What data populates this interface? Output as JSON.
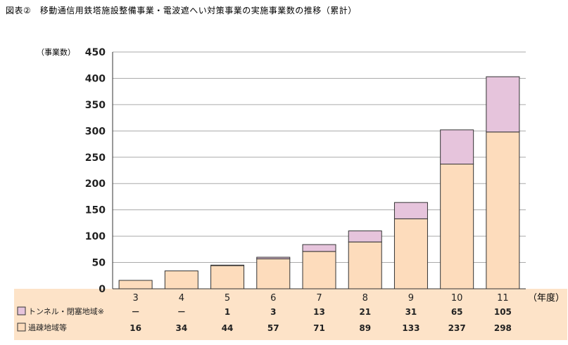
{
  "figure_title": "図表②　移動通信用鉄塔施設整備事業・電波遮へい対策事業の実施事業数の推移（累計）",
  "colors": {
    "base": "#fddcbc",
    "top": "#e6c4dc",
    "table_bg": "#fde3c8",
    "grid": "#aaaaaa",
    "edge": "#333333"
  },
  "chart_data": {
    "type": "bar",
    "stacked": true,
    "title": "図表②　移動通信用鉄塔施設整備事業・電波遮へい対策事業の実施事業数の推移（累計）",
    "ylabel": "（事業数）",
    "xlabel": "（年度）",
    "ylim": [
      0,
      450
    ],
    "yticks": [
      0,
      50,
      100,
      150,
      200,
      250,
      300,
      350,
      400,
      450
    ],
    "grid": true,
    "categories": [
      "3",
      "4",
      "5",
      "6",
      "7",
      "8",
      "9",
      "10",
      "11"
    ],
    "series": [
      {
        "name": "過疎地域等",
        "values": [
          16,
          34,
          44,
          57,
          71,
          89,
          133,
          237,
          298
        ],
        "labels": [
          "16",
          "34",
          "44",
          "57",
          "71",
          "89",
          "133",
          "237",
          "298"
        ],
        "color": "#fddcbc"
      },
      {
        "name": "トンネル・閉塞地域※",
        "values": [
          0,
          0,
          1,
          3,
          13,
          21,
          31,
          65,
          105
        ],
        "labels": [
          "－",
          "－",
          "1",
          "3",
          "13",
          "21",
          "31",
          "65",
          "105"
        ],
        "color": "#e6c4dc"
      }
    ]
  }
}
